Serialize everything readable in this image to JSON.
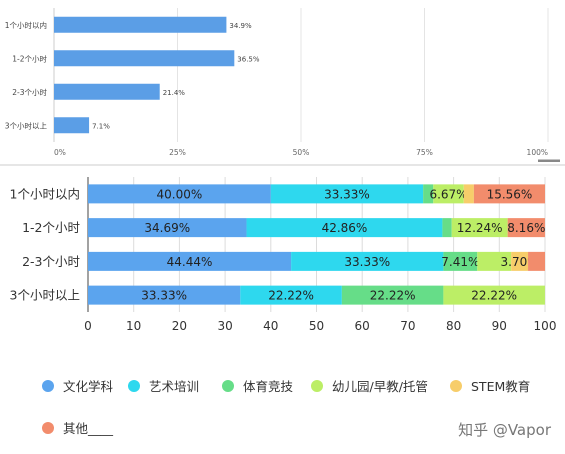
{
  "chart_data": [
    {
      "type": "bar",
      "orientation": "horizontal",
      "categories": [
        "1个小时以内",
        "1-2个小时",
        "2-3个小时",
        "3个小时以上"
      ],
      "values": [
        34.9,
        36.5,
        21.4,
        7.1
      ],
      "value_labels": [
        "34.9%",
        "36.5%",
        "21.4%",
        "7.1%"
      ],
      "xlim": [
        0,
        100
      ],
      "x_ticks": [
        "0%",
        "25%",
        "50%",
        "75%",
        "100%"
      ],
      "grid": true,
      "color": "#5b9ee6"
    },
    {
      "type": "bar",
      "orientation": "horizontal",
      "stacked": true,
      "categories": [
        "1个小时以内",
        "1-2个小时",
        "2-3个小时",
        "3个小时以上"
      ],
      "series": [
        {
          "name": "文化学科",
          "color": "#5ba4ee",
          "values": [
            40.0,
            34.69,
            44.44,
            33.33
          ]
        },
        {
          "name": "艺术培训",
          "color": "#2ed8ee",
          "values": [
            33.33,
            42.86,
            33.33,
            22.22
          ]
        },
        {
          "name": "体育竞技",
          "color": "#66dd88",
          "values": [
            2.22,
            2.04,
            7.41,
            22.22
          ]
        },
        {
          "name": "幼儿园/早教/托管",
          "color": "#bcee66",
          "values": [
            6.67,
            12.24,
            7.41,
            22.22
          ]
        },
        {
          "name": "STEM教育",
          "color": "#f7cd6a",
          "values": [
            2.22,
            0,
            3.7,
            0
          ]
        },
        {
          "name": "其他____",
          "color": "#f28c6c",
          "values": [
            15.56,
            8.16,
            3.71,
            0
          ]
        }
      ],
      "data_labels": [
        [
          "40.00%",
          "33.33%",
          "",
          "6.67%",
          "",
          "15.56%"
        ],
        [
          "34.69%",
          "42.86%",
          "",
          "12.24%",
          "",
          "8.16%"
        ],
        [
          "44.44%",
          "33.33%",
          "7.41%",
          "",
          "3.70%",
          ""
        ],
        [
          "33.33%",
          "22.22%",
          "22.22%",
          "22.22%",
          "",
          ""
        ]
      ],
      "xlim": [
        0,
        100
      ],
      "x_ticks": [
        "0",
        "10",
        "20",
        "30",
        "40",
        "50",
        "60",
        "70",
        "80",
        "90",
        "100"
      ],
      "grid": true,
      "legend_position": "bottom"
    }
  ],
  "legend": [
    {
      "label": "文化学科",
      "color": "#5ba4ee"
    },
    {
      "label": "艺术培训",
      "color": "#2ed8ee"
    },
    {
      "label": "体育竞技",
      "color": "#66dd88"
    },
    {
      "label": "幼儿园/早教/托管",
      "color": "#bcee66"
    },
    {
      "label": "STEM教育",
      "color": "#f7cd6a"
    },
    {
      "label": "其他____",
      "color": "#f28c6c"
    }
  ],
  "watermark": "知乎 @Vapor"
}
